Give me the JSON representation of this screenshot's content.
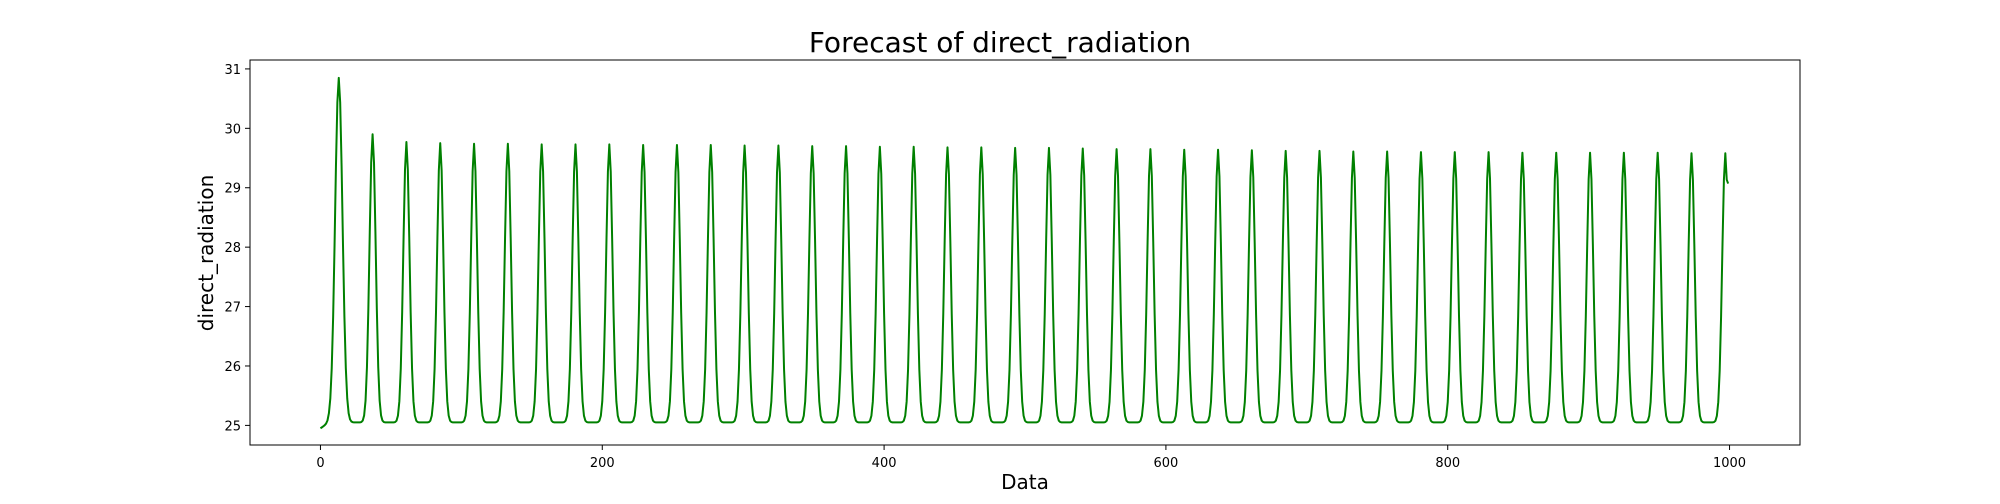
{
  "chart_data": {
    "type": "line",
    "title": "Forecast of direct_radiation",
    "xlabel": "Data",
    "ylabel": "direct_radiation",
    "xlim": [
      -50,
      1050
    ],
    "ylim": [
      24.67,
      31.15
    ],
    "xticks": [
      0,
      200,
      400,
      600,
      800,
      1000
    ],
    "yticks": [
      25,
      26,
      27,
      28,
      29,
      30,
      31
    ],
    "grid": false,
    "legend": "none",
    "series": [
      {
        "color": "#008000",
        "x_start": 0,
        "x_end": 999,
        "start_value": 24.95,
        "baseline": 25.05,
        "end_value": 29.07,
        "period": 24,
        "first_peak_x": 13,
        "peak_values": [
          30.85,
          29.9,
          29.77,
          29.75,
          29.74,
          29.74,
          29.73,
          29.73,
          29.73,
          29.72,
          29.72,
          29.72,
          29.71,
          29.71,
          29.7,
          29.7,
          29.69,
          29.69,
          29.68,
          29.68,
          29.67,
          29.67,
          29.66,
          29.65,
          29.65,
          29.64,
          29.64,
          29.63,
          29.62,
          29.62,
          29.61,
          29.61,
          29.6,
          29.6,
          29.6,
          29.59,
          29.59,
          29.59,
          29.59,
          29.59,
          29.58,
          29.58
        ]
      }
    ]
  }
}
